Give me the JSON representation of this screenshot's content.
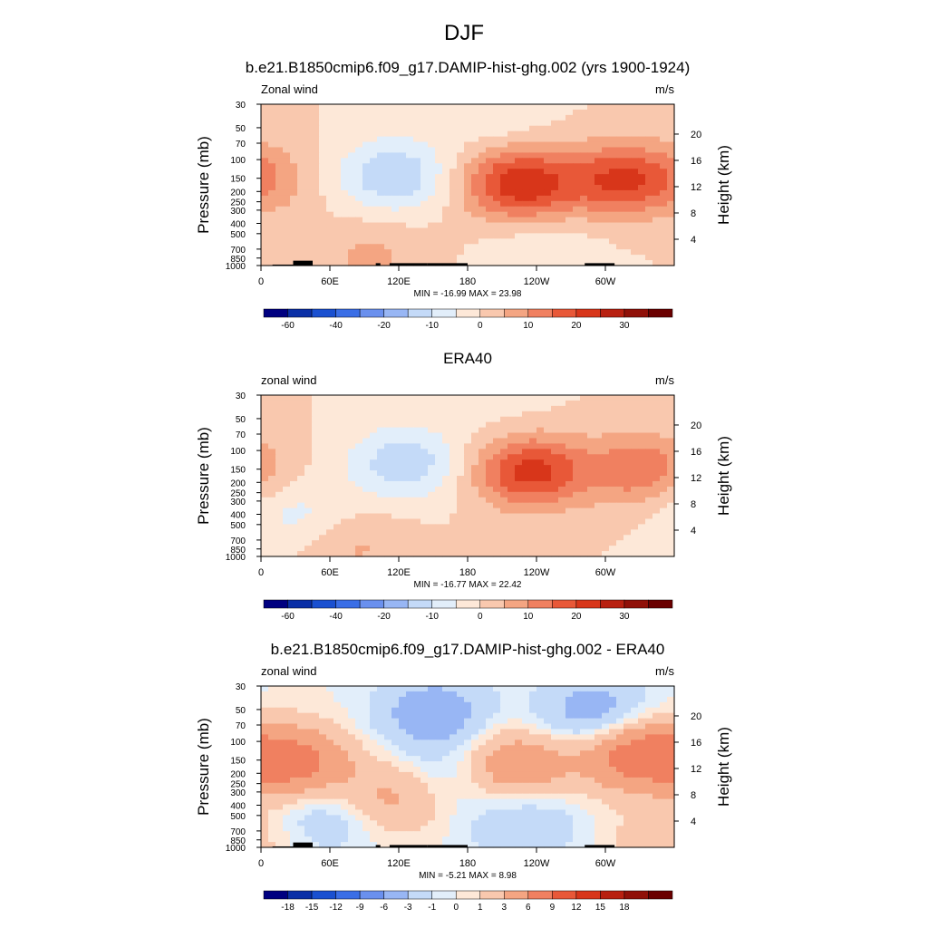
{
  "figure": {
    "title": "DJF"
  },
  "chart_data": [
    {
      "type": "heatmap",
      "title": "b.e21.B1850cmip6.f09_g17.DAMIP-hist-ghg.002 (yrs 1900-1924)",
      "left_label": "Zonal wind",
      "units": "m/s",
      "xlabel": "",
      "ylabel": "Pressure (mb)",
      "ylabel_right": "Height (km)",
      "x_ticks": [
        "0",
        "60E",
        "120E",
        "180",
        "120W",
        "60W"
      ],
      "y_ticks": [
        "30",
        "50",
        "70",
        "100",
        "150",
        "200",
        "250",
        "300",
        "400",
        "500",
        "700",
        "850",
        "1000"
      ],
      "y_ticks_right": [
        "20",
        "16",
        "12",
        "8",
        "4"
      ],
      "stats": "MIN = -16.99  MAX =  23.98",
      "min": -16.99,
      "max": 23.98,
      "colorbar": {
        "levels": [
          -70,
          -60,
          -50,
          -40,
          -30,
          -20,
          -15,
          -10,
          -5,
          0,
          5,
          10,
          15,
          20,
          25,
          30,
          35
        ],
        "labels": [
          "-60",
          "-40",
          "-20",
          "-10",
          "0",
          "10",
          "20",
          "30"
        ],
        "colors": [
          "#000080",
          "#0a2fa6",
          "#1a50d0",
          "#3a6ee6",
          "#6a90ee",
          "#98b6f4",
          "#c4daf8",
          "#e2eefa",
          "#fde8d8",
          "#f9c8ae",
          "#f4a582",
          "#f08060",
          "#e85838",
          "#d8361a",
          "#b82010",
          "#901008",
          "#6a0000"
        ]
      },
      "features": [
        {
          "x": 225,
          "p": 170,
          "v": 24
        },
        {
          "x": 310,
          "p": 155,
          "v": 18
        },
        {
          "x": 115,
          "p": 140,
          "v": -15
        },
        {
          "x": 0,
          "p": 150,
          "v": 8
        },
        {
          "x": 95,
          "p": 800,
          "v": 6
        },
        {
          "x": 200,
          "p": 35,
          "v": -5
        },
        {
          "x": 245,
          "p": 800,
          "v": -5
        }
      ],
      "topography": [
        [
          10,
          40,
          980
        ],
        [
          28,
          45,
          900
        ],
        [
          100,
          104,
          950
        ],
        [
          112,
          145,
          950
        ],
        [
          145,
          180,
          950
        ],
        [
          282,
          308,
          950
        ]
      ]
    },
    {
      "type": "heatmap",
      "title": "ERA40",
      "left_label": "zonal wind",
      "units": "m/s",
      "xlabel": "",
      "ylabel": "Pressure (mb)",
      "ylabel_right": "Height (km)",
      "x_ticks": [
        "0",
        "60E",
        "120E",
        "180",
        "120W",
        "60W"
      ],
      "y_ticks": [
        "30",
        "50",
        "70",
        "100",
        "150",
        "200",
        "250",
        "300",
        "400",
        "500",
        "700",
        "850",
        "1000"
      ],
      "y_ticks_right": [
        "20",
        "16",
        "12",
        "8",
        "4"
      ],
      "stats": "MIN = -16.77  MAX =  22.42",
      "min": -16.77,
      "max": 22.42,
      "colorbar": {
        "levels": [
          -70,
          -60,
          -50,
          -40,
          -30,
          -20,
          -15,
          -10,
          -5,
          0,
          5,
          10,
          15,
          20,
          25,
          30,
          35
        ],
        "labels": [
          "-60",
          "-40",
          "-20",
          "-10",
          "0",
          "10",
          "20",
          "30"
        ],
        "colors": [
          "#000080",
          "#0a2fa6",
          "#1a50d0",
          "#3a6ee6",
          "#6a90ee",
          "#98b6f4",
          "#c4daf8",
          "#e2eefa",
          "#fde8d8",
          "#f9c8ae",
          "#f4a582",
          "#f08060",
          "#e85838",
          "#d8361a",
          "#b82010",
          "#901008",
          "#6a0000"
        ]
      },
      "features": [
        {
          "x": 235,
          "p": 160,
          "v": 22
        },
        {
          "x": 330,
          "p": 150,
          "v": 14
        },
        {
          "x": 125,
          "p": 130,
          "v": -14
        },
        {
          "x": 30,
          "p": 400,
          "v": -7
        },
        {
          "x": 80,
          "p": 800,
          "v": 6
        },
        {
          "x": 200,
          "p": 30,
          "v": -3
        }
      ],
      "topography": []
    },
    {
      "type": "heatmap",
      "title": "b.e21.B1850cmip6.f09_g17.DAMIP-hist-ghg.002 - ERA40",
      "left_label": "zonal wind",
      "units": "m/s",
      "xlabel": "",
      "ylabel": "Pressure (mb)",
      "ylabel_right": "Height (km)",
      "x_ticks": [
        "0",
        "60E",
        "120E",
        "180",
        "120W",
        "60W"
      ],
      "y_ticks": [
        "30",
        "50",
        "70",
        "100",
        "150",
        "200",
        "250",
        "300",
        "400",
        "500",
        "700",
        "850",
        "1000"
      ],
      "y_ticks_right": [
        "20",
        "16",
        "12",
        "8",
        "4"
      ],
      "stats": "MIN = -5.21  MAX =  8.98",
      "min": -5.21,
      "max": 8.98,
      "colorbar": {
        "levels": [
          -21,
          -18,
          -15,
          -12,
          -9,
          -6,
          -3,
          -1,
          0,
          1,
          3,
          6,
          9,
          12,
          15,
          18,
          21
        ],
        "labels": [
          "-18",
          "-15",
          "-12",
          "-9",
          "-6",
          "-3",
          "-1",
          "0",
          "1",
          "3",
          "6",
          "9",
          "12",
          "15",
          "18"
        ],
        "colors": [
          "#000080",
          "#0a2fa6",
          "#1a50d0",
          "#3a6ee6",
          "#6a90ee",
          "#98b6f4",
          "#c4daf8",
          "#e2eefa",
          "#fde8d8",
          "#f9c8ae",
          "#f4a582",
          "#f08060",
          "#e85838",
          "#d8361a",
          "#b82010",
          "#901008",
          "#6a0000"
        ]
      },
      "features": [
        {
          "x": 30,
          "p": 160,
          "v": 7
        },
        {
          "x": 220,
          "p": 170,
          "v": 6
        },
        {
          "x": 325,
          "p": 130,
          "v": 8
        },
        {
          "x": 110,
          "p": 350,
          "v": 4
        },
        {
          "x": 150,
          "p": 55,
          "v": -5
        },
        {
          "x": 290,
          "p": 55,
          "v": -5
        },
        {
          "x": 60,
          "p": 500,
          "v": -3
        },
        {
          "x": 230,
          "p": 600,
          "v": -3
        },
        {
          "x": 170,
          "p": 200,
          "v": -2
        },
        {
          "x": 345,
          "p": 900,
          "v": 2
        }
      ],
      "topography": [
        [
          10,
          40,
          980
        ],
        [
          28,
          45,
          900
        ],
        [
          100,
          104,
          950
        ],
        [
          112,
          145,
          950
        ],
        [
          145,
          180,
          950
        ],
        [
          282,
          308,
          950
        ]
      ]
    }
  ]
}
